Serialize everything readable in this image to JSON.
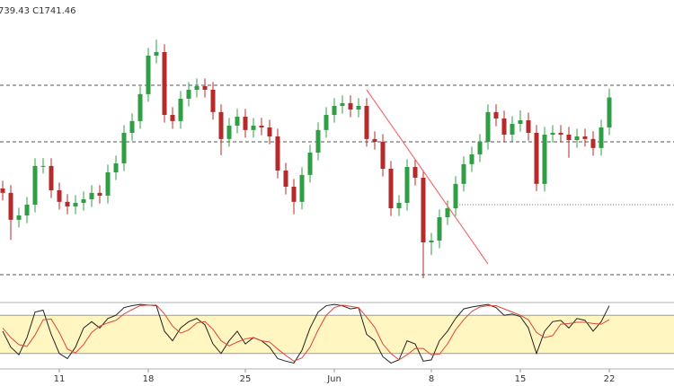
{
  "chart_data": {
    "type": "candlestick",
    "header": "739.43 C1741.46",
    "categories": [
      null,
      null,
      null,
      null,
      null,
      null,
      null,
      "11",
      null,
      null,
      null,
      null,
      null,
      null,
      null,
      null,
      null,
      null,
      "18",
      null,
      null,
      null,
      null,
      null,
      null,
      null,
      null,
      null,
      null,
      null,
      "25",
      null,
      null,
      null,
      null,
      null,
      null,
      null,
      null,
      null,
      null,
      "Jun",
      null,
      null,
      null,
      null,
      null,
      null,
      null,
      null,
      null,
      null,
      null,
      "8",
      null,
      null,
      null,
      null,
      null,
      null,
      null,
      null,
      null,
      null,
      "15",
      null,
      null,
      null,
      null,
      null,
      null,
      null,
      null,
      null,
      null,
      "22"
    ],
    "open": [
      1706.0,
      1704.3,
      1693.8,
      1695.5,
      1699.7,
      1714.8,
      1714.8,
      1705.3,
      1700.8,
      1699.0,
      1700.4,
      1701.8,
      1704.3,
      1703.2,
      1712.3,
      1715.8,
      1727.7,
      1732.3,
      1742.8,
      1757.8,
      1759.2,
      1734.7,
      1732.3,
      1741.0,
      1744.5,
      1745.9,
      1744.5,
      1735.8,
      1725.3,
      1730.5,
      1734.0,
      1728.8,
      1730.5,
      1729.8,
      1726.3,
      1713.0,
      1706.7,
      1700.8,
      1711.3,
      1720.0,
      1728.8,
      1734.7,
      1738.2,
      1739.3,
      1736.8,
      1738.2,
      1725.3,
      1724.2,
      1713.7,
      1698.3,
      1700.4,
      1714.4,
      1710.2,
      1685.0,
      1685.7,
      1694.8,
      1698.3,
      1707.8,
      1715.5,
      1719.3,
      1724.2,
      1735.8,
      1733.3,
      1727.0,
      1731.2,
      1732.6,
      1727.7,
      1707.8,
      1727.0,
      1727.7,
      1727.0,
      1724.9,
      1726.3,
      1725.3,
      1721.8,
      1729.8
    ],
    "high": [
      1709.0,
      1707.3,
      1698.5,
      1702.7,
      1717.8,
      1717.8,
      1717.8,
      1708.3,
      1703.8,
      1703.4,
      1704.8,
      1707.3,
      1707.3,
      1715.3,
      1718.8,
      1730.7,
      1735.3,
      1745.8,
      1760.8,
      1764.0,
      1762.2,
      1737.7,
      1744.0,
      1747.5,
      1748.9,
      1748.9,
      1747.5,
      1738.8,
      1733.5,
      1737.0,
      1737.0,
      1733.5,
      1733.5,
      1732.8,
      1729.3,
      1716.0,
      1709.7,
      1714.3,
      1723.0,
      1731.8,
      1737.7,
      1741.2,
      1742.3,
      1742.3,
      1741.2,
      1741.2,
      1728.3,
      1727.2,
      1716.7,
      1703.4,
      1717.4,
      1717.4,
      1713.2,
      1688.7,
      1697.8,
      1701.3,
      1710.8,
      1718.5,
      1722.3,
      1727.2,
      1738.8,
      1738.8,
      1736.3,
      1734.2,
      1736.5,
      1735.6,
      1730.7,
      1730.0,
      1730.7,
      1730.7,
      1730.0,
      1729.3,
      1729.3,
      1728.3,
      1732.8,
      1745.0
    ],
    "low": [
      1701.3,
      1686.0,
      1690.8,
      1692.5,
      1696.7,
      1711.8,
      1702.3,
      1697.8,
      1696.0,
      1696.0,
      1697.4,
      1698.8,
      1700.2,
      1700.2,
      1709.3,
      1712.8,
      1724.7,
      1729.3,
      1739.8,
      1754.8,
      1731.7,
      1729.3,
      1729.3,
      1738.0,
      1741.5,
      1741.5,
      1732.8,
      1719.0,
      1722.3,
      1727.5,
      1725.8,
      1725.8,
      1726.8,
      1723.3,
      1710.0,
      1703.7,
      1696.0,
      1697.8,
      1708.3,
      1717.0,
      1725.8,
      1731.7,
      1735.2,
      1733.8,
      1733.8,
      1722.3,
      1721.2,
      1710.7,
      1695.3,
      1695.3,
      1697.4,
      1707.2,
      1671.0,
      1680.0,
      1682.7,
      1691.8,
      1695.3,
      1704.8,
      1712.5,
      1716.3,
      1721.2,
      1730.3,
      1724.0,
      1724.0,
      1728.2,
      1724.7,
      1705.0,
      1704.8,
      1724.0,
      1724.0,
      1718.0,
      1721.9,
      1722.3,
      1718.8,
      1718.8,
      1726.8
    ],
    "close": [
      1704.3,
      1693.8,
      1695.5,
      1699.7,
      1714.8,
      1714.8,
      1705.3,
      1700.8,
      1699.0,
      1700.4,
      1701.8,
      1704.3,
      1703.2,
      1712.3,
      1715.8,
      1727.7,
      1732.3,
      1742.8,
      1757.8,
      1759.2,
      1734.7,
      1732.3,
      1741.0,
      1744.5,
      1745.9,
      1744.5,
      1735.8,
      1725.3,
      1730.5,
      1734.0,
      1728.8,
      1730.5,
      1729.8,
      1726.3,
      1713.0,
      1706.7,
      1700.8,
      1711.3,
      1720.0,
      1728.8,
      1734.7,
      1738.2,
      1739.3,
      1736.8,
      1738.2,
      1725.3,
      1724.2,
      1713.7,
      1698.3,
      1700.4,
      1714.4,
      1710.2,
      1685.0,
      1685.7,
      1694.8,
      1698.3,
      1707.8,
      1715.5,
      1719.3,
      1724.2,
      1735.8,
      1733.3,
      1727.0,
      1731.2,
      1732.6,
      1727.7,
      1707.8,
      1727.0,
      1727.7,
      1727.0,
      1724.9,
      1726.3,
      1725.3,
      1721.8,
      1729.8,
      1741.5
    ],
    "up_color": "#2f9e44",
    "down_color": "#b52a2a",
    "ylim": [
      1668.2,
      1779.5
    ],
    "levels": [
      1746.25,
      1724.2,
      1672.4
    ],
    "dotted_level": {
      "value": 1699.7,
      "from": 55.8
    },
    "trendline": {
      "color": "#f07070",
      "points": [
        [
          45,
          1744.5
        ],
        [
          60,
          1676.6
        ]
      ]
    },
    "stochastic": {
      "ylim": [
        0,
        100
      ],
      "bands": [
        20,
        80
      ],
      "band_color": "#fff6c2",
      "series": [
        {
          "color": "#222222",
          "values": [
            55,
            30,
            18,
            45,
            85,
            88,
            50,
            20,
            12,
            30,
            60,
            70,
            60,
            75,
            80,
            92,
            95,
            97,
            96,
            95,
            55,
            40,
            60,
            70,
            75,
            65,
            35,
            20,
            40,
            55,
            35,
            45,
            40,
            30,
            12,
            8,
            5,
            25,
            60,
            85,
            95,
            97,
            95,
            90,
            92,
            50,
            40,
            15,
            5,
            10,
            40,
            35,
            8,
            10,
            40,
            55,
            75,
            90,
            93,
            95,
            97,
            92,
            80,
            82,
            78,
            60,
            20,
            55,
            70,
            72,
            60,
            75,
            72,
            55,
            70,
            95
          ]
        },
        {
          "color": "#e0463a",
          "values": [
            60,
            45,
            34,
            31,
            49,
            73,
            74,
            53,
            27,
            21,
            34,
            53,
            63,
            68,
            72,
            82,
            89,
            95,
            96,
            96,
            82,
            63,
            52,
            57,
            68,
            70,
            58,
            40,
            32,
            38,
            43,
            45,
            40,
            38,
            27,
            17,
            8,
            13,
            30,
            57,
            80,
            92,
            96,
            94,
            92,
            77,
            61,
            35,
            20,
            10,
            18,
            28,
            28,
            18,
            19,
            35,
            57,
            73,
            86,
            93,
            95,
            95,
            90,
            85,
            80,
            73,
            53,
            45,
            48,
            66,
            67,
            69,
            69,
            67,
            66,
            73
          ]
        }
      ]
    }
  }
}
